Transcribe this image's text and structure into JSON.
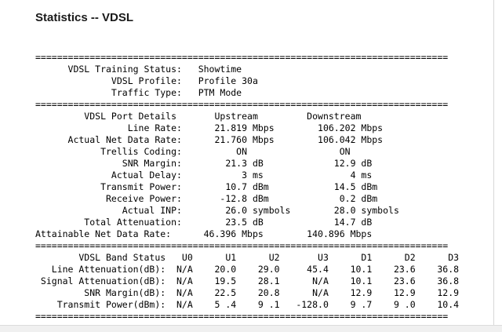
{
  "page": {
    "title": "Statistics -- VDSL"
  },
  "report": {
    "text": "============================================================================\n      VDSL Training Status:   Showtime\n              VDSL Profile:   Profile 30a\n              Traffic Type:   PTM Mode\n============================================================================\n         VDSL Port Details       Upstream         Downstream\n                 Line Rate:      21.819 Mbps        106.202 Mbps\n      Actual Net Data Rate:      21.760 Mbps        106.042 Mbps\n            Trellis Coding:          ON                 ON\n                SNR Margin:        21.3 dB             12.9 dB\n              Actual Delay:           3 ms                4 ms\n            Transmit Power:        10.7 dBm            14.5 dBm\n             Receive Power:       -12.8 dBm             0.2 dBm\n                Actual INP:        26.0 symbols        28.0 symbols\n         Total Attenuation:        23.5 dB             14.7 dB\nAttainable Net Data Rate:      46.396 Mbps        140.896 Mbps\n============================================================================\n        VDSL Band Status   U0      U1      U2       U3      D1      D2      D3\n   Line Attenuation(dB):  N/A    20.0    29.0     45.4    10.1    23.6    36.8\n Signal Attenuation(dB):  N/A    19.5    28.1      N/A    10.1    23.6    36.8\n         SNR Margin(dB):  N/A    22.5    20.8      N/A    12.9    12.9    12.9\n    Transmit Power(dBm):  N/A    5 .4    9 .1   -128.0    9 .7    9 .0    10.4\n============================================================================"
  }
}
